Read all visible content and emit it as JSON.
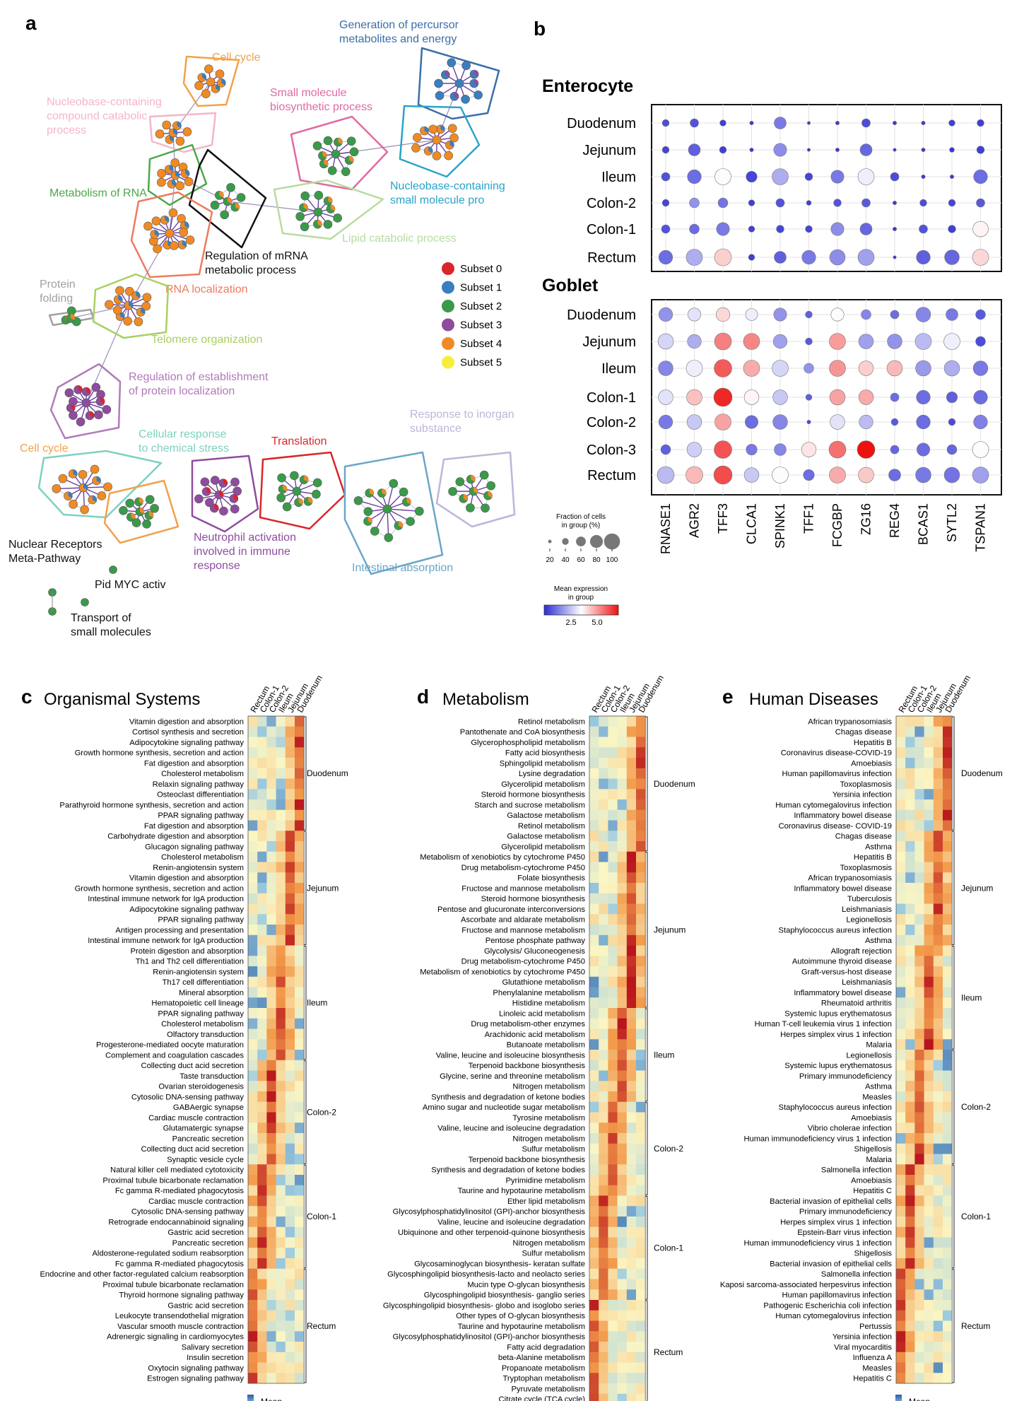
{
  "panel_letters": {
    "a": "a",
    "b": "b",
    "c": "c",
    "d": "d",
    "e": "e"
  },
  "colors": {
    "subset0": "#d8262b",
    "subset1": "#3a7ebf",
    "subset2": "#3a9a4a",
    "subset3": "#8e4c9e",
    "subset4": "#f08a24",
    "subset5": "#f6ee3a",
    "dot_low": "#2b2bd6",
    "dot_mid": "#ffffff",
    "dot_high": "#ee1111",
    "hm_low": "#2c5fa3",
    "hm_mid": "#fbf6c4",
    "hm_high": "#b8141c"
  },
  "panel_a": {
    "clusters": [
      {
        "label": "Generation of percursor metabolites and energy",
        "color": "#3a6ea8"
      },
      {
        "label": "Cell cycle",
        "color": "#f0a24b"
      },
      {
        "label": "Nucleobase-containing compound catabolic process",
        "color": "#f4b6c8"
      },
      {
        "label": "Small molecule biosynthetic process",
        "color": "#e06aa3"
      },
      {
        "label": "Metabolism of RNA",
        "color": "#4aa84a"
      },
      {
        "label": "Nucleobase-containing small molecule pro",
        "color": "#2aa3c9"
      },
      {
        "label": "Lipid catabolic process",
        "color": "#b8dca0"
      },
      {
        "label": "Regulation of mRNA metabolic process",
        "color": "#111111"
      },
      {
        "label": "RNA localization",
        "color": "#ee7a5e"
      },
      {
        "label": "Protein folding",
        "color": "#a0a0a0"
      },
      {
        "label": "Telomere organization",
        "color": "#a8d060"
      },
      {
        "label": "Regulation of establishment of protein localization",
        "color": "#b07ab8"
      },
      {
        "label": "Cellular response to chemical stress",
        "color": "#7fd0c0"
      },
      {
        "label": "Cell cycle",
        "color": "#f0a24b"
      },
      {
        "label": "Translation",
        "color": "#d8262b"
      },
      {
        "label": "Response to inorgan substance",
        "color": "#c0b4d8"
      },
      {
        "label": "Neutrophil activation involved in immune response",
        "color": "#8e4c9e"
      },
      {
        "label": "Intestinal absorption",
        "color": "#6aa6c8"
      },
      {
        "label": "Nuclear Receptors Meta-Pathway",
        "color": "#111111"
      },
      {
        "label": "Pid MYC activ",
        "color": "#111111"
      },
      {
        "label": "Transport of small molecules",
        "color": "#111111"
      }
    ],
    "legend": [
      "Subset 0",
      "Subset 1",
      "Subset 2",
      "Subset 3",
      "Subset 4",
      "Subset 5"
    ]
  },
  "panel_b": {
    "chart_data": {
      "type": "scatter",
      "genes": [
        "RNASE1",
        "AGR2",
        "TFF3",
        "CLCA1",
        "SPINK1",
        "TFF1",
        "FCGBP",
        "ZG16",
        "REG4",
        "BCAS1",
        "SYTL2",
        "TSPAN1"
      ],
      "enterocyte": {
        "title": "Enterocyte",
        "rows": [
          "Duodenum",
          "Jejunum",
          "Ileum",
          "Colon-2",
          "Colon-1",
          "Rectum"
        ],
        "fraction": [
          [
            10,
            15,
            8,
            3,
            30,
            2,
            3,
            15,
            3,
            3,
            8,
            10
          ],
          [
            10,
            30,
            10,
            3,
            35,
            2,
            3,
            30,
            2,
            3,
            5,
            12
          ],
          [
            15,
            40,
            55,
            25,
            55,
            12,
            35,
            55,
            15,
            3,
            3,
            40
          ],
          [
            10,
            20,
            20,
            8,
            15,
            5,
            12,
            15,
            3,
            10,
            10,
            15
          ],
          [
            15,
            20,
            35,
            8,
            12,
            10,
            35,
            30,
            3,
            15,
            12,
            50
          ],
          [
            40,
            55,
            60,
            8,
            30,
            40,
            50,
            55,
            2,
            40,
            45,
            55
          ]
        ],
        "expression": [
          [
            0.5,
            0.6,
            0.3,
            0.2,
            1.2,
            0.2,
            0.2,
            0.5,
            0.2,
            0.2,
            0.3,
            0.3
          ],
          [
            0.4,
            0.8,
            0.3,
            0.2,
            1.5,
            0.2,
            0.2,
            0.9,
            0.2,
            0.2,
            0.2,
            0.3
          ],
          [
            0.6,
            1.0,
            3.2,
            0.4,
            2.0,
            0.4,
            1.2,
            3.0,
            0.5,
            0.2,
            0.2,
            1.0
          ],
          [
            0.4,
            1.6,
            1.1,
            0.3,
            0.6,
            0.3,
            0.6,
            0.7,
            0.2,
            0.5,
            0.4,
            0.7
          ],
          [
            0.6,
            1.0,
            1.2,
            0.3,
            0.4,
            0.4,
            1.5,
            0.9,
            0.2,
            0.6,
            0.3,
            3.4
          ],
          [
            1.0,
            2.0,
            3.9,
            0.3,
            0.8,
            1.2,
            1.5,
            1.8,
            0.2,
            0.8,
            0.9,
            3.8
          ]
        ]
      },
      "goblet": {
        "title": "Goblet",
        "rows": [
          "Duodenum",
          "Jejunum",
          "Ileum",
          "Colon-1",
          "Colon-2",
          "Colon-3",
          "Rectum"
        ],
        "fraction": [
          [
            40,
            35,
            40,
            30,
            35,
            10,
            35,
            20,
            15,
            45,
            30,
            20
          ],
          [
            50,
            40,
            60,
            55,
            40,
            10,
            55,
            45,
            45,
            55,
            55,
            20
          ],
          [
            45,
            55,
            65,
            55,
            55,
            20,
            55,
            45,
            50,
            50,
            50,
            45
          ],
          [
            45,
            50,
            70,
            45,
            45,
            8,
            50,
            45,
            15,
            40,
            25,
            40
          ],
          [
            40,
            45,
            55,
            35,
            45,
            3,
            45,
            40,
            10,
            40,
            10,
            40
          ],
          [
            20,
            45,
            65,
            25,
            30,
            45,
            60,
            65,
            15,
            35,
            20,
            55
          ],
          [
            60,
            60,
            70,
            45,
            55,
            25,
            55,
            50,
            30,
            50,
            50,
            55
          ]
        ],
        "expression": [
          [
            1.6,
            2.8,
            3.8,
            3.0,
            1.6,
            0.8,
            3.2,
            1.4,
            1.0,
            1.4,
            1.2,
            0.7
          ],
          [
            2.6,
            2.0,
            5.0,
            4.9,
            1.8,
            0.7,
            4.6,
            1.8,
            1.6,
            2.2,
            3.0,
            0.5
          ],
          [
            1.4,
            3.0,
            5.5,
            4.4,
            2.6,
            1.6,
            4.7,
            3.9,
            4.2,
            1.7,
            2.0,
            1.2
          ],
          [
            2.8,
            4.1,
            6.2,
            3.4,
            2.4,
            0.8,
            4.5,
            4.4,
            1.0,
            1.0,
            0.8,
            1.0
          ],
          [
            1.2,
            2.4,
            4.5,
            1.0,
            1.4,
            0.5,
            2.8,
            2.2,
            0.7,
            1.0,
            0.5,
            1.3
          ],
          [
            0.8,
            2.5,
            5.6,
            1.2,
            1.4,
            3.6,
            5.2,
            6.5,
            0.9,
            1.0,
            0.9,
            3.2
          ],
          [
            2.2,
            4.2,
            5.7,
            2.4,
            3.2,
            1.0,
            4.4,
            4.0,
            1.0,
            1.2,
            1.1,
            1.8
          ]
        ]
      },
      "size_legend": {
        "title": "Fraction of cells in group (%)",
        "ticks": [
          "20",
          "40",
          "60",
          "80",
          "100"
        ]
      },
      "color_legend": {
        "title": "Mean expression in group",
        "ticks": [
          "2.5",
          "5.0"
        ]
      }
    }
  },
  "heatmap_common": {
    "columns": [
      "Rectum",
      "Colon-1",
      "Colon-2",
      "Ileum",
      "Jejunum",
      "Duodenum"
    ],
    "groups": [
      "Duodenum",
      "Jejunum",
      "Ileum",
      "Colon-2",
      "Colon-1",
      "Rectum"
    ],
    "legend_title": "Mean expression in group"
  },
  "panel_c": {
    "title": "Organismal Systems",
    "chart_data": {
      "type": "heatmap",
      "group_sizes": [
        11,
        11,
        11,
        10,
        10,
        11
      ],
      "rows": [
        "Vitamin digestion and absorption",
        "Cortisol synthesis and secretion",
        "Adipocytokine signaling pathway",
        "Growth hormone synthesis, secretion and action",
        "Fat digestion and absorption",
        "Cholesterol metabolism",
        "Relaxin signaling pathway",
        "Osteoclast differentiation",
        "Parathyroid hormone synthesis, secretion and action",
        "PPAR signaling pathway",
        "Fat digestion and absorption",
        "Carbohydrate digestion and absorption",
        "Glucagon signaling pathway",
        "Cholesterol metabolism",
        "Renin-angiotensin system",
        "Vitamin digestion and absorption",
        "Growth hormone synthesis, secretion and action",
        "Intestinal immune network for IgA production",
        "Adipocytokine signaling pathway",
        "PPAR signaling pathway",
        "Antigen processing and presentation",
        "Intestinal immune network for IgA production",
        "Protein digestion and absorption",
        "Th1 and Th2 cell differentiation",
        "Renin-angiotensin system",
        "Th17 cell differentiation",
        "Mineral absorption",
        "Hematopoietic cell lineage",
        "PPAR signaling pathway",
        "Cholesterol metabolism",
        "Olfactory transduction",
        "Progesterone-mediated oocyte maturation",
        "Complement and coagulation cascades",
        "Collecting duct acid secretion",
        "Taste transduction",
        "Ovarian steroidogenesis",
        "Cytosolic DNA-sensing pathway",
        "GABAergic synapse",
        "Cardiac muscle contraction",
        "Glutamatergic synapse",
        "Pancreatic secretion",
        "Collecting duct acid secretion",
        "Synaptic vesicle cycle",
        "Natural killer cell mediated cytotoxicity",
        "Proximal tubule bicarbonate reclamation",
        "Fc gamma R-mediated phagocytosis",
        "Cardiac muscle contraction",
        "Cytosolic DNA-sensing pathway",
        "Retrograde endocannabinoid signaling",
        "Gastric acid secretion",
        "Pancreatic secretion",
        "Aldosterone-regulated sodium reabsorption",
        "Fc gamma R-mediated phagocytosis",
        "Endocrine and other factor-regulated calcium reabsorption",
        "Proximal tubule bicarbonate reclamation",
        "Thyroid hormone signaling pathway",
        "Gastric acid secretion",
        "Leukocyte transendothelial migration",
        "Vascular smooth muscle contraction",
        "Adrenergic signaling in cardiomyocytes",
        "Salivary secretion",
        "Insulin secretion",
        "Oxytocin signaling pathway",
        "Estrogen signaling pathway"
      ]
    }
  },
  "panel_d": {
    "title": "Metabolism",
    "chart_data": {
      "type": "heatmap",
      "group_sizes": [
        13,
        15,
        9,
        9,
        10,
        10
      ],
      "rows": [
        "Retinol metabolism",
        "Pantothenate and CoA biosynthesis",
        "Glycerophospholipid metabolism",
        "Fatty acid biosynthesis",
        "Sphingolipid metabolism",
        "Lysine degradation",
        "Glycerolipid metabolism",
        "Steroid hormone biosynthesis",
        "Starch and sucrose metabolism",
        "Galactose metabolism",
        "Retinol metabolism",
        "Galactose metabolism",
        "Glycerolipid metabolism",
        "Metabolism of xenobiotics by cytochrome P450",
        "Drug metabolism-cytochrome P450",
        "Folate biosynthesis",
        "Fructose and mannose metabolism",
        "Steroid hormone biosynthesis",
        "Pentose and glucuronate interconversions",
        "Ascorbate and aldarate metabolism",
        "Fructose and mannose metabolism",
        "Pentose phosphate pathway",
        "Glycolysis/ Gluconeogenesis",
        "Drug metabolism-cytochrome P450",
        "Metabolism of xenobiotics by cytochrome P450",
        "Glutathione metabolism",
        "Phenylalanine metabolism",
        "Histidine metabolism",
        "Linoleic acid metabolism",
        "Drug metabolism-other enzymes",
        "Arachidonic acid metabolism",
        "Butanoate metabolism",
        "Valine, leucine and isoleucine biosynthesis",
        "Terpenoid backbone biosynthesis",
        "Glycine, serine and threonine metabolism",
        "Nitrogen metabolism",
        "Synthesis and degradation of ketone bodies",
        "Amino sugar and nucleotide sugar metabolism",
        "Tyrosine metabolism",
        "Valine, leucine and isoleucine degradation",
        "Nitrogen metabolism",
        "Sulfur metabolism",
        "Terpenoid backbone biosynthesis",
        "Synthesis and degradation of ketone bodies",
        "Pyrimidine metabolism",
        "Taurine and hypotaurine metabolism",
        "Ether lipid metabolism",
        "Glycosylphosphatidylinositol (GPI)-anchor biosynthesis",
        "Valine, leucine and isoleucine degradation",
        "Ubiquinone and other terpenoid-quinone biosynthesis",
        "Nitrogen metabolism",
        "Sulfur metabolism",
        "Glycosaminoglycan biosynthesis- keratan sulfate",
        "Glycosphingolipid biosynthesis-lacto and neolacto series",
        "Mucin type O-glycan biosynthesis",
        "Glycosphingolipid biosynthesis- ganglio series",
        "Glycosphingolipid biosynthesis- globo and isoglobo series",
        "Other types of O-glycan biosynthesis",
        "Taurine and hypotaurine metabolism",
        "Glycosylphosphatidylinositol (GPI)-anchor biosynthesis",
        "Fatty acid degradation",
        "beta-Alanine metabolism",
        "Propanoate metabolism",
        "Tryptophan metabolism",
        "Pyruvate metabolism",
        "Citrate cycle (TCA cycle)"
      ]
    }
  },
  "panel_e": {
    "title": "Human Diseases",
    "chart_data": {
      "type": "heatmap",
      "group_sizes": [
        11,
        11,
        10,
        11,
        10,
        11
      ],
      "rows": [
        "African trypanosomiasis",
        "Chagas disease",
        "Hepatitis B",
        "Coronavirus disease-COVID-19",
        "Amoebiasis",
        "Human papillomavirus infection",
        "Toxoplasmosis",
        "Yersinia infection",
        "Human cytomegalovirus infection",
        "Inflammatory bowel disease",
        "Coronavirus disease- COVID-19",
        "Chagas disease",
        "Asthma",
        "Hepatitis B",
        "Toxoplasmosis",
        "African trypanosomiasis",
        "Inflammatory bowel disease",
        "Tuberculosis",
        "Leishmaniasis",
        "Legionellosis",
        "Staphylococcus aureus infection",
        "Asthma",
        "Allograft rejection",
        "Autoimmune thyroid disease",
        "Graft-versus-host disease",
        "Leishmaniasis",
        "Inflammatory bowel disease",
        "Rheumatoid arthritis",
        "Systemic lupus erythematosus",
        "Human T-cell leukemia virus 1 infection",
        "Herpes simplex virus 1 infection",
        "Malaria",
        "Legionellosis",
        "Systemic lupus erythematosus",
        "Primary immunodeficiency",
        "Asthma",
        "Measles",
        "Staphylococcus aureus infection",
        "Amoebiasis",
        "Vibrio cholerae infection",
        "Human immunodeficiency virus 1 infection",
        "Shigellosis",
        "Malaria",
        "Salmonella infection",
        "Amoebiasis",
        "Hepatitis C",
        "Bacterial invasion of epithelial cells",
        "Primary immunodeficiency",
        "Herpes simplex virus 1 infection",
        "Epstein-Barr virus infection",
        "Human immunodeficiency virus 1 infection",
        "Shigellosis",
        "Bacterial invasion of epithelial cells",
        "Salmonella infection",
        "Kaposi sarcoma-associated herpesvirus infection",
        "Human papillomavirus infection",
        "Pathogenic Escherichia coli infection",
        "Human cytomegalovirus infection",
        "Pertussis",
        "Yersinia infection",
        "Viral myocarditis",
        "Influenza A",
        "Measles",
        "Hepatitis C"
      ]
    }
  }
}
